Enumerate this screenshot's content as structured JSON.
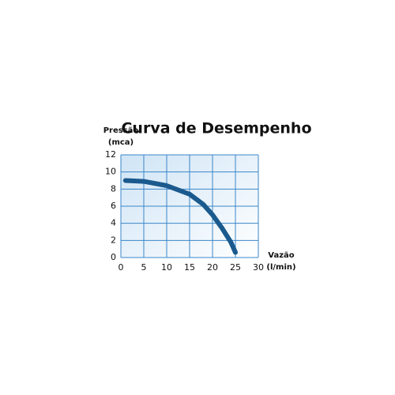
{
  "chart_data": {
    "type": "line",
    "title": "Curva de Desempenho",
    "ylabel": [
      "Pressão",
      "(mca)"
    ],
    "xlabel": [
      "Vazão",
      "(l/min)"
    ],
    "x": [
      1,
      5,
      10,
      15,
      18,
      20,
      22,
      24,
      25
    ],
    "series": [
      {
        "color": "#1b5a8e",
        "values": [
          9,
          8.9,
          8.4,
          7.4,
          6.2,
          5,
          3.5,
          1.8,
          0.6
        ]
      }
    ],
    "xlim": [
      0,
      30
    ],
    "xticks": [
      0,
      5,
      10,
      15,
      20,
      25,
      30
    ],
    "ylim": [
      0,
      12
    ],
    "yticks": [
      0,
      2,
      4,
      6,
      8,
      10,
      12
    ],
    "grid": true
  }
}
